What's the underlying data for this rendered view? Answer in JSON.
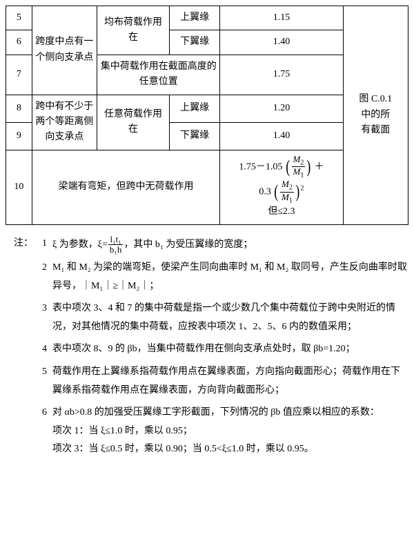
{
  "table": {
    "rows_5_6_7_desc": "跨度中点有一个侧向支承点",
    "rows_5_6_load": "均布荷载作用在",
    "row5": {
      "num": "5",
      "pos": "上翼缘",
      "val": "1.15"
    },
    "row6": {
      "num": "6",
      "pos": "下翼缘",
      "val": "1.40"
    },
    "row7": {
      "num": "7",
      "load": "集中荷载作用在截面高度的任意位置",
      "val": "1.75"
    },
    "rows_8_9_desc": "跨中有不少于两个等距离侧向支承点",
    "rows_8_9_load": "任意荷载作用在",
    "row8": {
      "num": "8",
      "pos": "上翼缘",
      "val": "1.20"
    },
    "row9": {
      "num": "9",
      "pos": "下翼缘",
      "val": "1.40"
    },
    "row10": {
      "num": "10",
      "desc": "梁端有弯矩，但跨中无荷载作用",
      "limit": "但≤2.3"
    },
    "fig": "图 C.0.1\n中的所\n有截面"
  },
  "notes": {
    "label": "注：",
    "n1_a": "ξ 为参数，ξ=",
    "n1_num": "l₁t₁",
    "n1_den": "b₁h",
    "n1_b": "，其中 b₁ 为受压翼缘的宽度；",
    "n2": "M₁ 和 M₂ 为梁的端弯矩，使梁产生同向曲率时 M₁ 和 M₂ 取同号，产生反向曲率时取异号，｜M₁｜≥｜M₂｜；",
    "n3": "表中项次 3、4 和 7 的集中荷载是指一个或少数几个集中荷载位于跨中央附近的情况，对其他情况的集中荷载，应按表中项次 1、2、5、6 内的数值采用；",
    "n4": "表中项次 8、9 的 βb，当集中荷载作用在侧向支承点处时，取 βb=1.20；",
    "n5": "荷载作用在上翼缘系指荷载作用点在翼缘表面，方向指向截面形心；荷载作用在下翼缘系指荷载作用点在翼缘表面，方向背向截面形心；",
    "n6": "对 αb>0.8 的加强受压翼缘工字形截面，下列情况的 βb 值应乘以相应的系数：",
    "n6a": "项次 1：当 ξ≤1.0 时，乘以 0.95；",
    "n6b": "项次 3：当 ξ≤0.5 时，乘以 0.90；当 0.5<ξ≤1.0 时，乘以 0.95。"
  }
}
